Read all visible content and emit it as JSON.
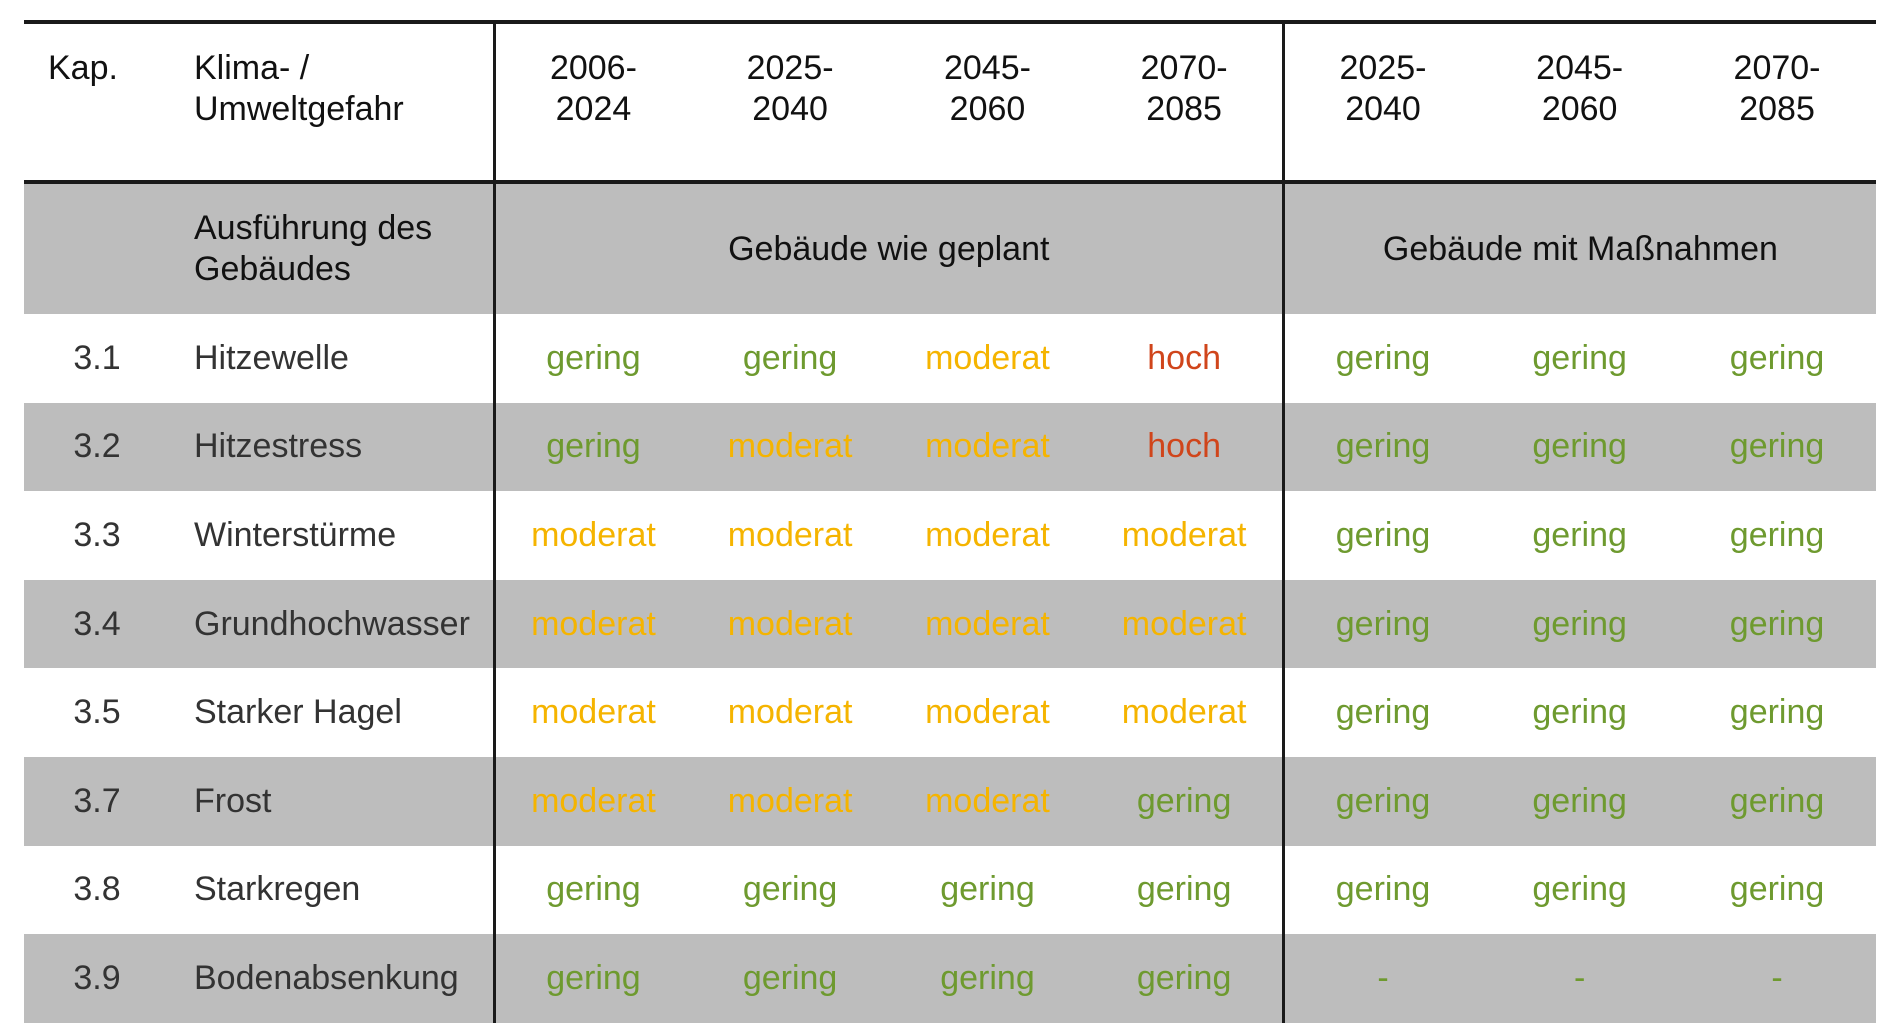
{
  "header": {
    "kap_label": "Kap.",
    "hazard_label_line1": "Klima- /",
    "hazard_label_line2": "Umweltgefahr",
    "periods": [
      {
        "line1": "2006-",
        "line2": "2024"
      },
      {
        "line1": "2025-",
        "line2": "2040"
      },
      {
        "line1": "2045-",
        "line2": "2060"
      },
      {
        "line1": "2070-",
        "line2": "2085"
      },
      {
        "line1": "2025-",
        "line2": "2040"
      },
      {
        "line1": "2045-",
        "line2": "2060"
      },
      {
        "line1": "2070-",
        "line2": "2085"
      }
    ]
  },
  "section": {
    "label_line1": "Ausführung des",
    "label_line2": "Gebäudes",
    "group_planned": "Gebäude wie geplant",
    "group_measures": "Gebäude mit Maßnahmen"
  },
  "colors": {
    "gering": "#6e9a2f",
    "moderat": "#f5b400",
    "hoch": "#d0451b",
    "row_gray": "#bdbdbd"
  },
  "rows": [
    {
      "kap": "3.1",
      "hazard": "Hitzewelle",
      "values": [
        "gering",
        "gering",
        "moderat",
        "hoch",
        "gering",
        "gering",
        "gering"
      ]
    },
    {
      "kap": "3.2",
      "hazard": "Hitzestress",
      "values": [
        "gering",
        "moderat",
        "moderat",
        "hoch",
        "gering",
        "gering",
        "gering"
      ]
    },
    {
      "kap": "3.3",
      "hazard": "Winterstürme",
      "values": [
        "moderat",
        "moderat",
        "moderat",
        "moderat",
        "gering",
        "gering",
        "gering"
      ]
    },
    {
      "kap": "3.4",
      "hazard": "Grundhochwasser",
      "values": [
        "moderat",
        "moderat",
        "moderat",
        "moderat",
        "gering",
        "gering",
        "gering"
      ]
    },
    {
      "kap": "3.5",
      "hazard": "Starker Hagel",
      "values": [
        "moderat",
        "moderat",
        "moderat",
        "moderat",
        "gering",
        "gering",
        "gering"
      ]
    },
    {
      "kap": "3.7",
      "hazard": "Frost",
      "values": [
        "moderat",
        "moderat",
        "moderat",
        "gering",
        "gering",
        "gering",
        "gering"
      ]
    },
    {
      "kap": "3.8",
      "hazard": "Starkregen",
      "values": [
        "gering",
        "gering",
        "gering",
        "gering",
        "gering",
        "gering",
        "gering"
      ]
    },
    {
      "kap": "3.9",
      "hazard": "Bodenabsenkung",
      "values": [
        "gering",
        "gering",
        "gering",
        "gering",
        "-",
        "-",
        "-"
      ]
    }
  ]
}
